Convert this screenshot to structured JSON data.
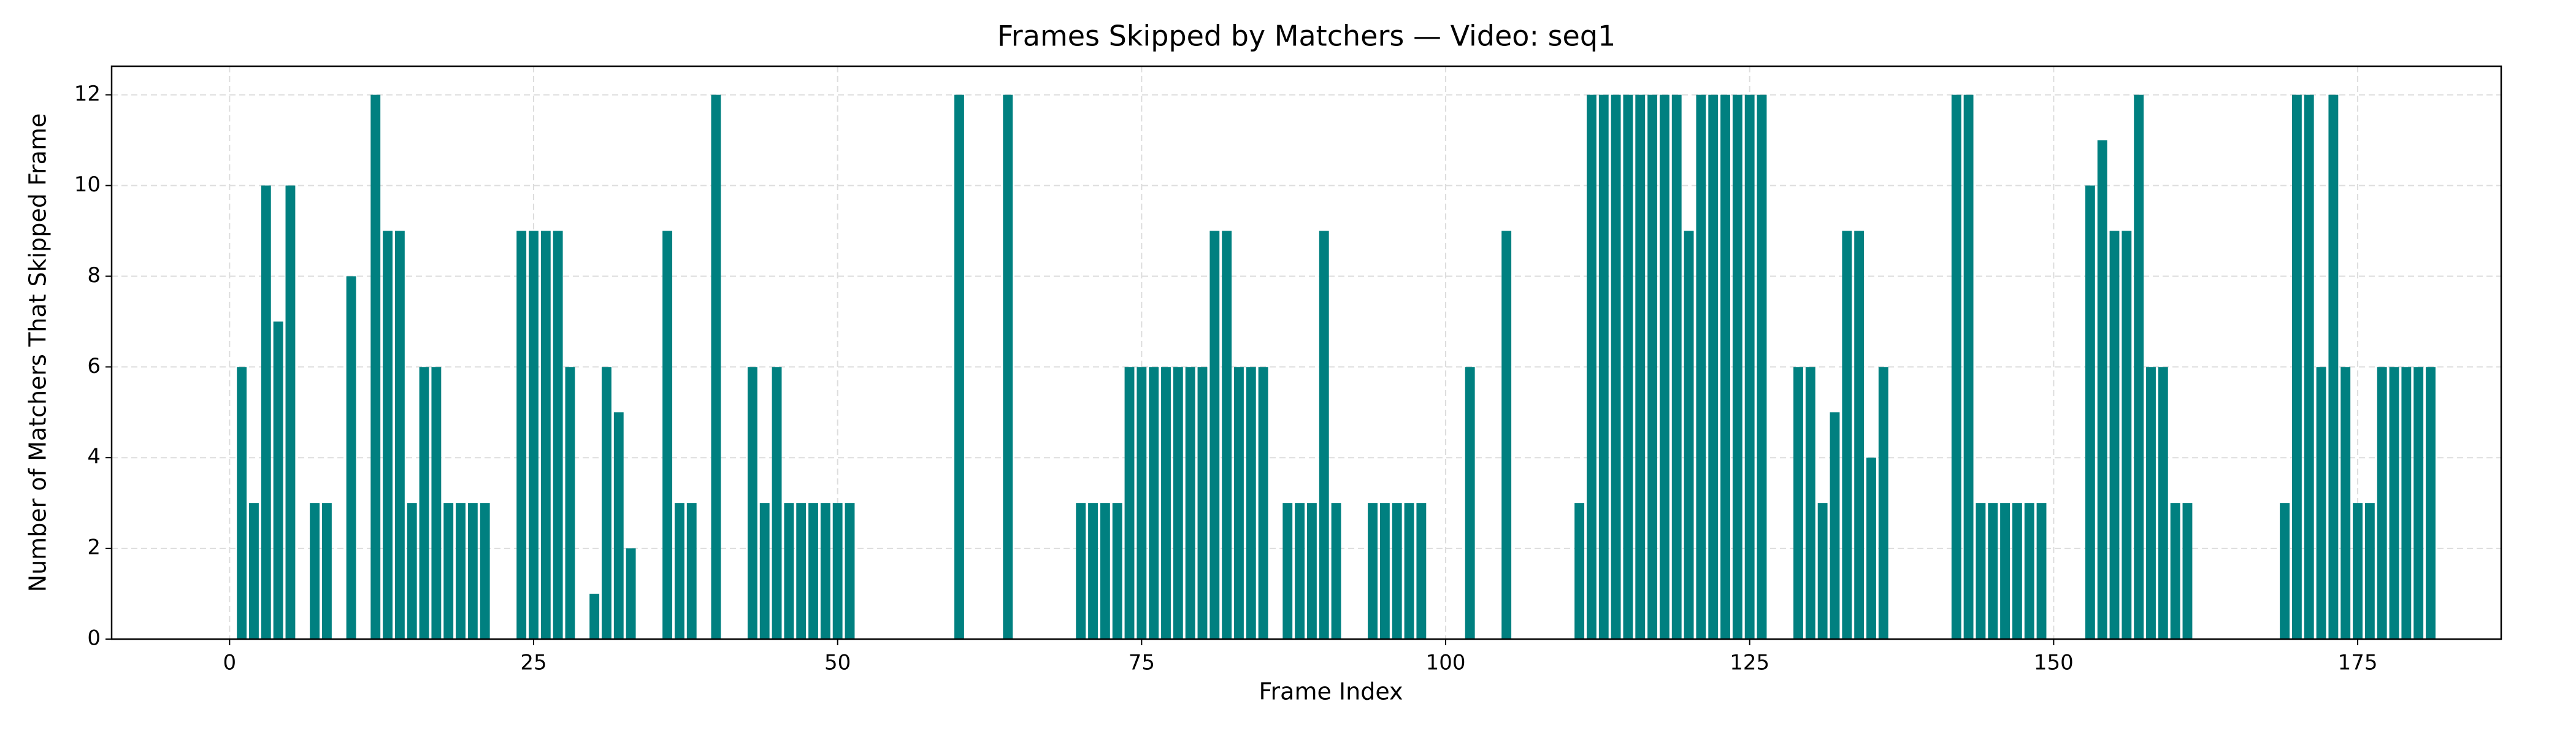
{
  "chart_data": {
    "type": "bar",
    "title": "Frames Skipped by Matchers — Video: seq1",
    "x_label": "Frame Index",
    "y_label": "Number of Matchers That Skipped Frame",
    "color": "#008080",
    "grid": true,
    "x": [
      1,
      2,
      3,
      4,
      5,
      7,
      8,
      10,
      12,
      13,
      14,
      15,
      16,
      17,
      18,
      19,
      20,
      21,
      24,
      25,
      26,
      27,
      28,
      30,
      31,
      32,
      33,
      36,
      37,
      38,
      40,
      43,
      44,
      45,
      46,
      47,
      48,
      49,
      50,
      51,
      60,
      64,
      70,
      71,
      72,
      73,
      74,
      75,
      76,
      77,
      78,
      79,
      80,
      81,
      82,
      83,
      84,
      85,
      87,
      88,
      89,
      90,
      91,
      94,
      95,
      96,
      97,
      98,
      102,
      105,
      111,
      112,
      113,
      114,
      115,
      116,
      117,
      118,
      119,
      120,
      121,
      122,
      123,
      124,
      125,
      126,
      129,
      130,
      131,
      132,
      133,
      134,
      135,
      136,
      142,
      143,
      144,
      145,
      146,
      147,
      148,
      149,
      153,
      154,
      155,
      156,
      157,
      158,
      159,
      160,
      161,
      169,
      170,
      171,
      172,
      173,
      174,
      175,
      176,
      177,
      178,
      179,
      180,
      181
    ],
    "values": [
      6,
      3,
      10,
      7,
      10,
      3,
      3,
      8,
      12,
      9,
      9,
      3,
      6,
      6,
      3,
      3,
      3,
      3,
      9,
      9,
      9,
      9,
      6,
      1,
      6,
      5,
      2,
      9,
      3,
      3,
      12,
      6,
      3,
      6,
      3,
      3,
      3,
      3,
      3,
      3,
      12,
      12,
      3,
      3,
      3,
      3,
      6,
      6,
      6,
      6,
      6,
      6,
      6,
      9,
      9,
      6,
      6,
      6,
      3,
      3,
      3,
      9,
      3,
      3,
      3,
      3,
      3,
      3,
      6,
      9,
      3,
      12,
      12,
      12,
      12,
      12,
      12,
      12,
      12,
      9,
      12,
      12,
      12,
      12,
      12,
      12,
      6,
      6,
      3,
      5,
      9,
      9,
      4,
      6,
      12,
      12,
      3,
      3,
      3,
      3,
      3,
      3,
      10,
      11,
      9,
      9,
      12,
      6,
      6,
      3,
      3,
      3,
      12,
      12,
      6,
      12,
      6,
      3,
      3,
      6,
      6,
      6,
      6,
      6
    ],
    "xlim": [
      -9.7,
      186.8
    ],
    "xticks": [
      0,
      25,
      50,
      75,
      100,
      125,
      150,
      175
    ],
    "ylim": [
      0,
      12.63
    ],
    "yticks": [
      0,
      2,
      4,
      6,
      8,
      10,
      12
    ]
  }
}
